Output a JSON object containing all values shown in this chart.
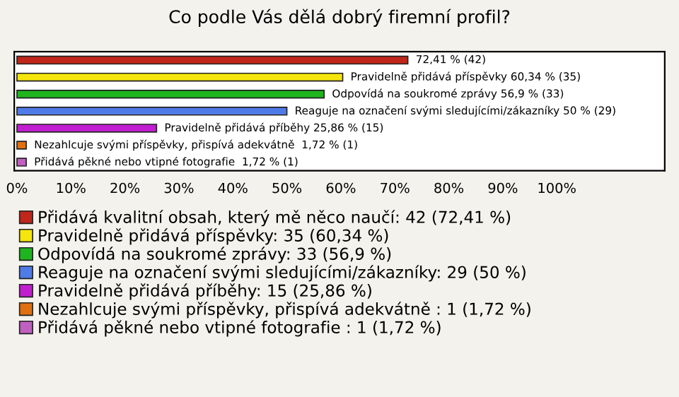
{
  "chart_data": {
    "type": "bar",
    "orientation": "horizontal",
    "title": "Co podle Vás dělá dobrý firemní profil?",
    "categories": [
      null,
      null,
      null,
      null,
      null,
      null,
      null
    ],
    "series": [
      {
        "name": "Přidává kvalitní obsah, který mě něco naučí: 42 (72,41 %)",
        "color": "#c0261a",
        "values": [
          72.41,
          null,
          null,
          null,
          null,
          null,
          null
        ],
        "value_labels": [
          "72,41 % (42)",
          null,
          null,
          null,
          null,
          null,
          null
        ]
      },
      {
        "name": "Pravidelně přidává příspěvky: 35 (60,34 %)",
        "color": "#f5e50c",
        "values": [
          null,
          60.34,
          null,
          null,
          null,
          null,
          null
        ],
        "value_labels": [
          null,
          "Pravidelně přidává příspěvky 60,34 % (35)",
          null,
          null,
          null,
          null,
          null
        ]
      },
      {
        "name": "Odpovídá na soukromé zprávy: 33 (56,9 %)",
        "color": "#1fb51f",
        "values": [
          null,
          null,
          56.9,
          null,
          null,
          null,
          null
        ],
        "value_labels": [
          null,
          null,
          "Odpovídá na soukromé zprávy 56,9 % (33)",
          null,
          null,
          null,
          null
        ]
      },
      {
        "name": "Reaguje na označení svými sledujícími/zákazníky: 29 (50 %)",
        "color": "#4f7be8",
        "values": [
          null,
          null,
          null,
          50,
          null,
          null,
          null
        ],
        "value_labels": [
          null,
          null,
          null,
          "Reaguje na označení svými sledujícími/zákazníky 50 % (29)",
          null,
          null,
          null
        ]
      },
      {
        "name": "Pravidelně přidává příběhy: 15 (25,86 %)",
        "color": "#c11ed0",
        "values": [
          null,
          null,
          null,
          null,
          25.86,
          null,
          null
        ],
        "value_labels": [
          null,
          null,
          null,
          null,
          "Pravidelně přidává příběhy 25,86 % (15)",
          null,
          null
        ]
      },
      {
        "name": "Nezahlcuje svými příspěvky, přispívá adekvátně : 1 (1,72 %)",
        "color": "#e07010",
        "values": [
          null,
          null,
          null,
          null,
          null,
          1.72,
          null
        ],
        "value_labels": [
          null,
          null,
          null,
          null,
          null,
          "Nezahlcuje svými příspěvky, přispívá adekvátně  1,72 % (1)",
          null
        ]
      },
      {
        "name": "Přidává pěkné nebo vtipné fotografie : 1 (1,72 %)",
        "color": "#c060c0",
        "values": [
          null,
          null,
          null,
          null,
          null,
          null,
          1.72
        ],
        "value_labels": [
          null,
          null,
          null,
          null,
          null,
          null,
          "Přidává pěkné nebo vtipné fotografie  1,72 % (1)"
        ]
      }
    ],
    "xlim": [
      -0.5,
      120
    ],
    "xticks": [
      {
        "value": 0,
        "label": "0%"
      },
      {
        "value": 10,
        "label": "10%"
      },
      {
        "value": 20,
        "label": "20%"
      },
      {
        "value": 30,
        "label": "30%"
      },
      {
        "value": 40,
        "label": "40%"
      },
      {
        "value": 50,
        "label": "50%"
      },
      {
        "value": 60,
        "label": "60%"
      },
      {
        "value": 70,
        "label": "70%"
      },
      {
        "value": 80,
        "label": "80%"
      },
      {
        "value": 90,
        "label": "90%"
      },
      {
        "value": 100,
        "label": "100%"
      }
    ],
    "legend": "bottom"
  }
}
